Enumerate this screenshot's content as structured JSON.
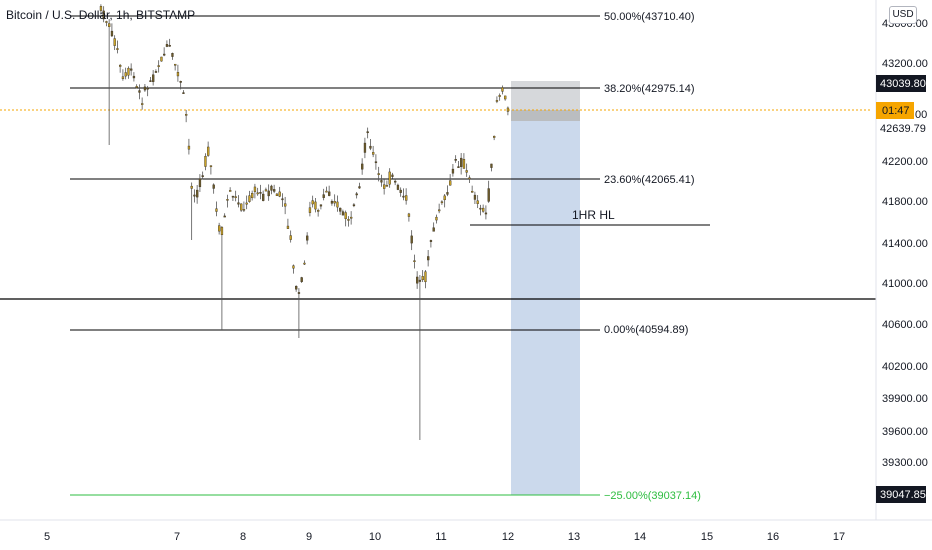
{
  "header": {
    "symbol_title": "Bitcoin / U.S. Dollar, 1h, BITSTAMP",
    "currency_badge": "USD"
  },
  "axis": {
    "price_ticks": [
      "43600.00",
      "43200.00",
      "42200.00",
      "41800.00",
      "41400.00",
      "41000.00",
      "40600.00",
      "40200.00",
      "39900.00",
      "39600.00",
      "39300.00"
    ],
    "date_ticks": [
      "5",
      "7",
      "8",
      "9",
      "10",
      "11",
      "12",
      "13",
      "14",
      "15",
      "16",
      "17"
    ],
    "labels": {
      "top": "43039.80",
      "timer": "01:47",
      "timer_partial": "00",
      "below": "42639.79",
      "bottom": "39047.85"
    }
  },
  "fib": [
    {
      "label": "50.00%(43710.40)"
    },
    {
      "label": "38.20%(42975.14)"
    },
    {
      "label": "23.60%(42065.41)"
    },
    {
      "label": "0.00%(40594.89)"
    },
    {
      "label": "−25.00%(39037.14)"
    }
  ],
  "annotations": {
    "hl_label": "1HR HL"
  },
  "colors": {
    "candle_up": "#c9a227",
    "candle_down": "#6b5a2a",
    "fib_line": "#000000",
    "target_line": "#2ebd40",
    "stop_zone": "#b5b8bd",
    "target_zone": "#c5d5ea",
    "timer_bg": "#f6a500",
    "price_label_bg": "#131722",
    "current_price_line": "#f6a500"
  },
  "chart_data": {
    "type": "candlestick",
    "series_color": "#c9a227"
  }
}
